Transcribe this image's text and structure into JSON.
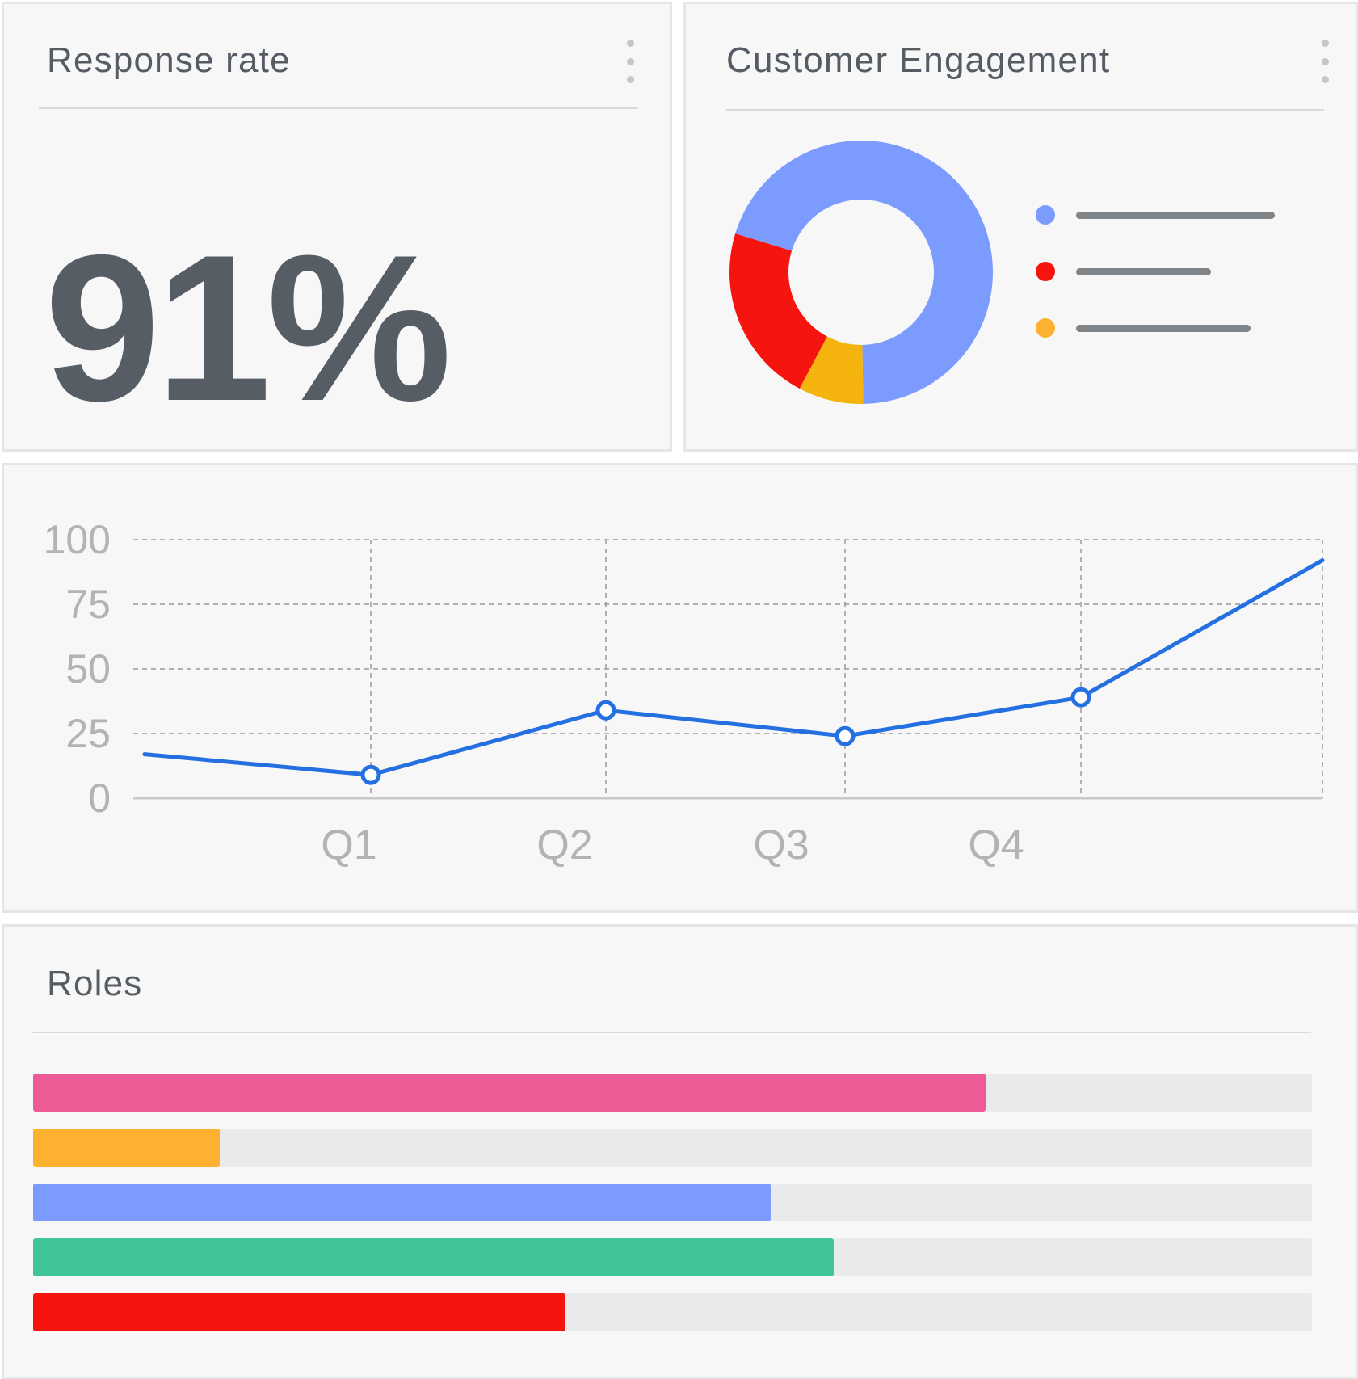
{
  "response_card": {
    "title": "Response rate",
    "value": "91%",
    "menu_icon": "kebab-menu-icon"
  },
  "engagement_card": {
    "title": "Customer Engagement",
    "menu_icon": "kebab-menu-icon",
    "chart_data": {
      "type": "pie",
      "variant": "donut",
      "title": "Customer Engagement",
      "slices": [
        {
          "value": 70,
          "color": "#7b9bff"
        },
        {
          "value": 8,
          "color": "#f5b30e"
        },
        {
          "value": 22,
          "color": "#f5140e"
        }
      ],
      "legend_placement": "right",
      "legend": [
        {
          "color": "#7b9bff",
          "label_fraction": 1.0
        },
        {
          "color": "#f5140e",
          "label_fraction": 0.68
        },
        {
          "color": "#fbb230",
          "label_fraction": 0.88
        }
      ]
    }
  },
  "trend_card": {
    "chart_data": {
      "type": "line",
      "title": "",
      "xlabel": "",
      "ylabel": "",
      "categories": [
        "Q1",
        "Q2",
        "Q3",
        "Q4"
      ],
      "y_ticks": [
        "100",
        "75",
        "50",
        "25",
        "0"
      ],
      "ylim": [
        0,
        100
      ],
      "grid": true,
      "series": [
        {
          "color": "#2470e0",
          "points": [
            {
              "x": 0.0,
              "y": 17
            },
            {
              "x": 1.0,
              "y": 9,
              "marker": true
            },
            {
              "x": 2.0,
              "y": 34,
              "marker": true
            },
            {
              "x": 3.0,
              "y": 24,
              "marker": true
            },
            {
              "x": 4.0,
              "y": 39,
              "marker": true
            },
            {
              "x": 5.0,
              "y": 92
            }
          ]
        }
      ]
    }
  },
  "roles_card": {
    "title": "Roles",
    "chart_data": {
      "type": "bar",
      "orientation": "horizontal",
      "title": "Roles",
      "xlim": [
        0,
        100
      ],
      "bars": [
        {
          "value": 74.5,
          "color": "#ee5a95"
        },
        {
          "value": 14.6,
          "color": "#fcb131"
        },
        {
          "value": 57.7,
          "color": "#7b9bff"
        },
        {
          "value": 62.6,
          "color": "#41c498"
        },
        {
          "value": 41.6,
          "color": "#f5140e"
        }
      ]
    }
  }
}
